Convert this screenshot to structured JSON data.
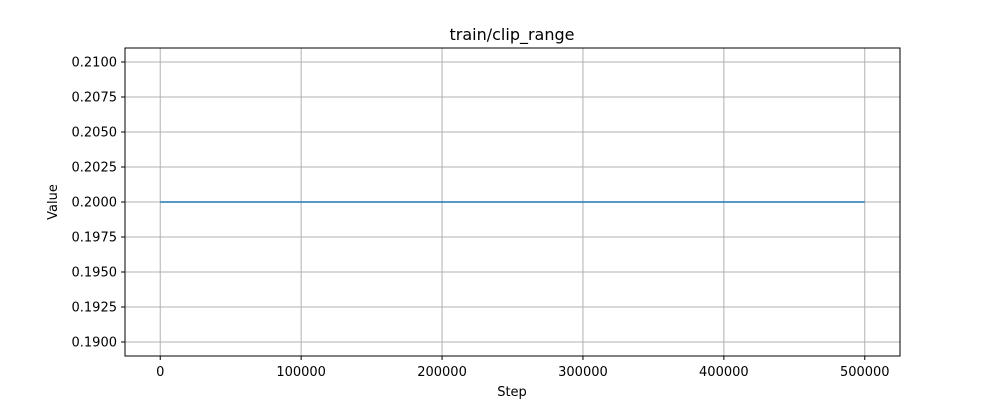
{
  "chart_data": {
    "type": "line",
    "title": "train/clip_range",
    "xlabel": "Step",
    "ylabel": "Value",
    "xlim": [
      -25000,
      525000
    ],
    "ylim": [
      0.189,
      0.211
    ],
    "x_ticks": [
      0,
      100000,
      200000,
      300000,
      400000,
      500000
    ],
    "x_tick_labels": [
      "0",
      "100000",
      "200000",
      "300000",
      "400000",
      "500000"
    ],
    "y_ticks": [
      0.19,
      0.1925,
      0.195,
      0.1975,
      0.2,
      0.2025,
      0.205,
      0.2075,
      0.21
    ],
    "y_tick_labels": [
      "0.1900",
      "0.1925",
      "0.1950",
      "0.1975",
      "0.2000",
      "0.2025",
      "0.2050",
      "0.2075",
      "0.2100"
    ],
    "grid": true,
    "series": [
      {
        "color": "#1f77b4",
        "x": [
          0,
          500000
        ],
        "y": [
          0.2,
          0.2
        ]
      }
    ]
  }
}
